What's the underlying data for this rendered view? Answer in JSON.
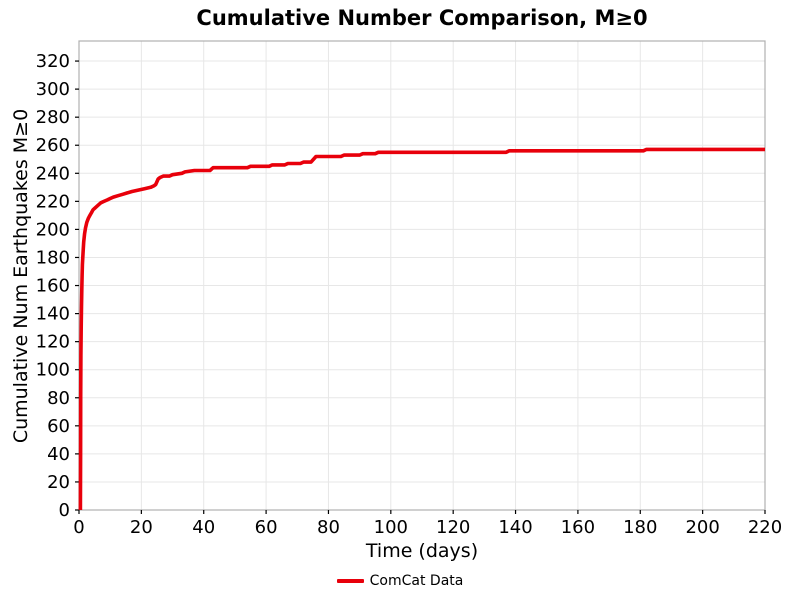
{
  "chart_data": {
    "type": "line",
    "title": "Cumulative Number Comparison, M≥0",
    "xlabel": "Time (days)",
    "ylabel": "Cumulative Num Earthquakes M≥0",
    "xlim": [
      0,
      220
    ],
    "ylim": [
      0,
      334.3
    ],
    "xticks": [
      0,
      20,
      40,
      60,
      80,
      100,
      120,
      140,
      160,
      180,
      200,
      220
    ],
    "yticks": [
      0,
      20,
      40,
      60,
      80,
      100,
      120,
      140,
      160,
      180,
      200,
      220,
      240,
      260,
      280,
      300,
      320
    ],
    "grid": true,
    "legend_position": "bottom-center",
    "series": [
      {
        "name": "ComCat Data",
        "color": "#e8000b",
        "x": [
          0.45,
          0.5,
          0.55,
          0.6,
          0.7,
          0.8,
          0.9,
          1.0,
          1.1,
          1.3,
          1.5,
          1.8,
          2.1,
          2.5,
          3.0,
          3.5,
          4.0,
          4.5,
          5.0,
          6.0,
          7.0,
          8.0,
          9.0,
          10.0,
          11.0,
          12.5,
          14.0,
          15.5,
          17.0,
          19.0,
          21.0,
          23.0,
          24.0,
          24.6,
          25.4,
          26.0,
          27.0,
          29.0,
          30.0,
          33.0,
          34.0,
          37.0,
          42.0,
          43.0,
          54.0,
          55.0,
          61.0,
          62.0,
          66.0,
          67.0,
          71.0,
          72.0,
          74.4,
          76.0,
          84.0,
          85.0,
          90.0,
          91.0,
          95.0,
          96.0,
          137.0,
          138.0,
          181.0,
          182.0,
          220.0
        ],
        "y": [
          0,
          40,
          80,
          110,
          130,
          145,
          157,
          167,
          175,
          184,
          191,
          197,
          201,
          205,
          208,
          210,
          212,
          214,
          215,
          217,
          219,
          220,
          221,
          222,
          223,
          224,
          225,
          226,
          227,
          228,
          229,
          230,
          231,
          232,
          236,
          237,
          238,
          238,
          239,
          240,
          241,
          242,
          242,
          244,
          244,
          245,
          245,
          246,
          246,
          247,
          247,
          248,
          248,
          252,
          252,
          253,
          253,
          254,
          254,
          255,
          255,
          256,
          256,
          257,
          257
        ]
      }
    ]
  },
  "style": {
    "line_color": "#e8000b",
    "grid_color": "#e7e7e7",
    "spine_color": "#b0b0b0",
    "tick_color": "#000000",
    "text_color": "#000000",
    "background": "#ffffff"
  }
}
